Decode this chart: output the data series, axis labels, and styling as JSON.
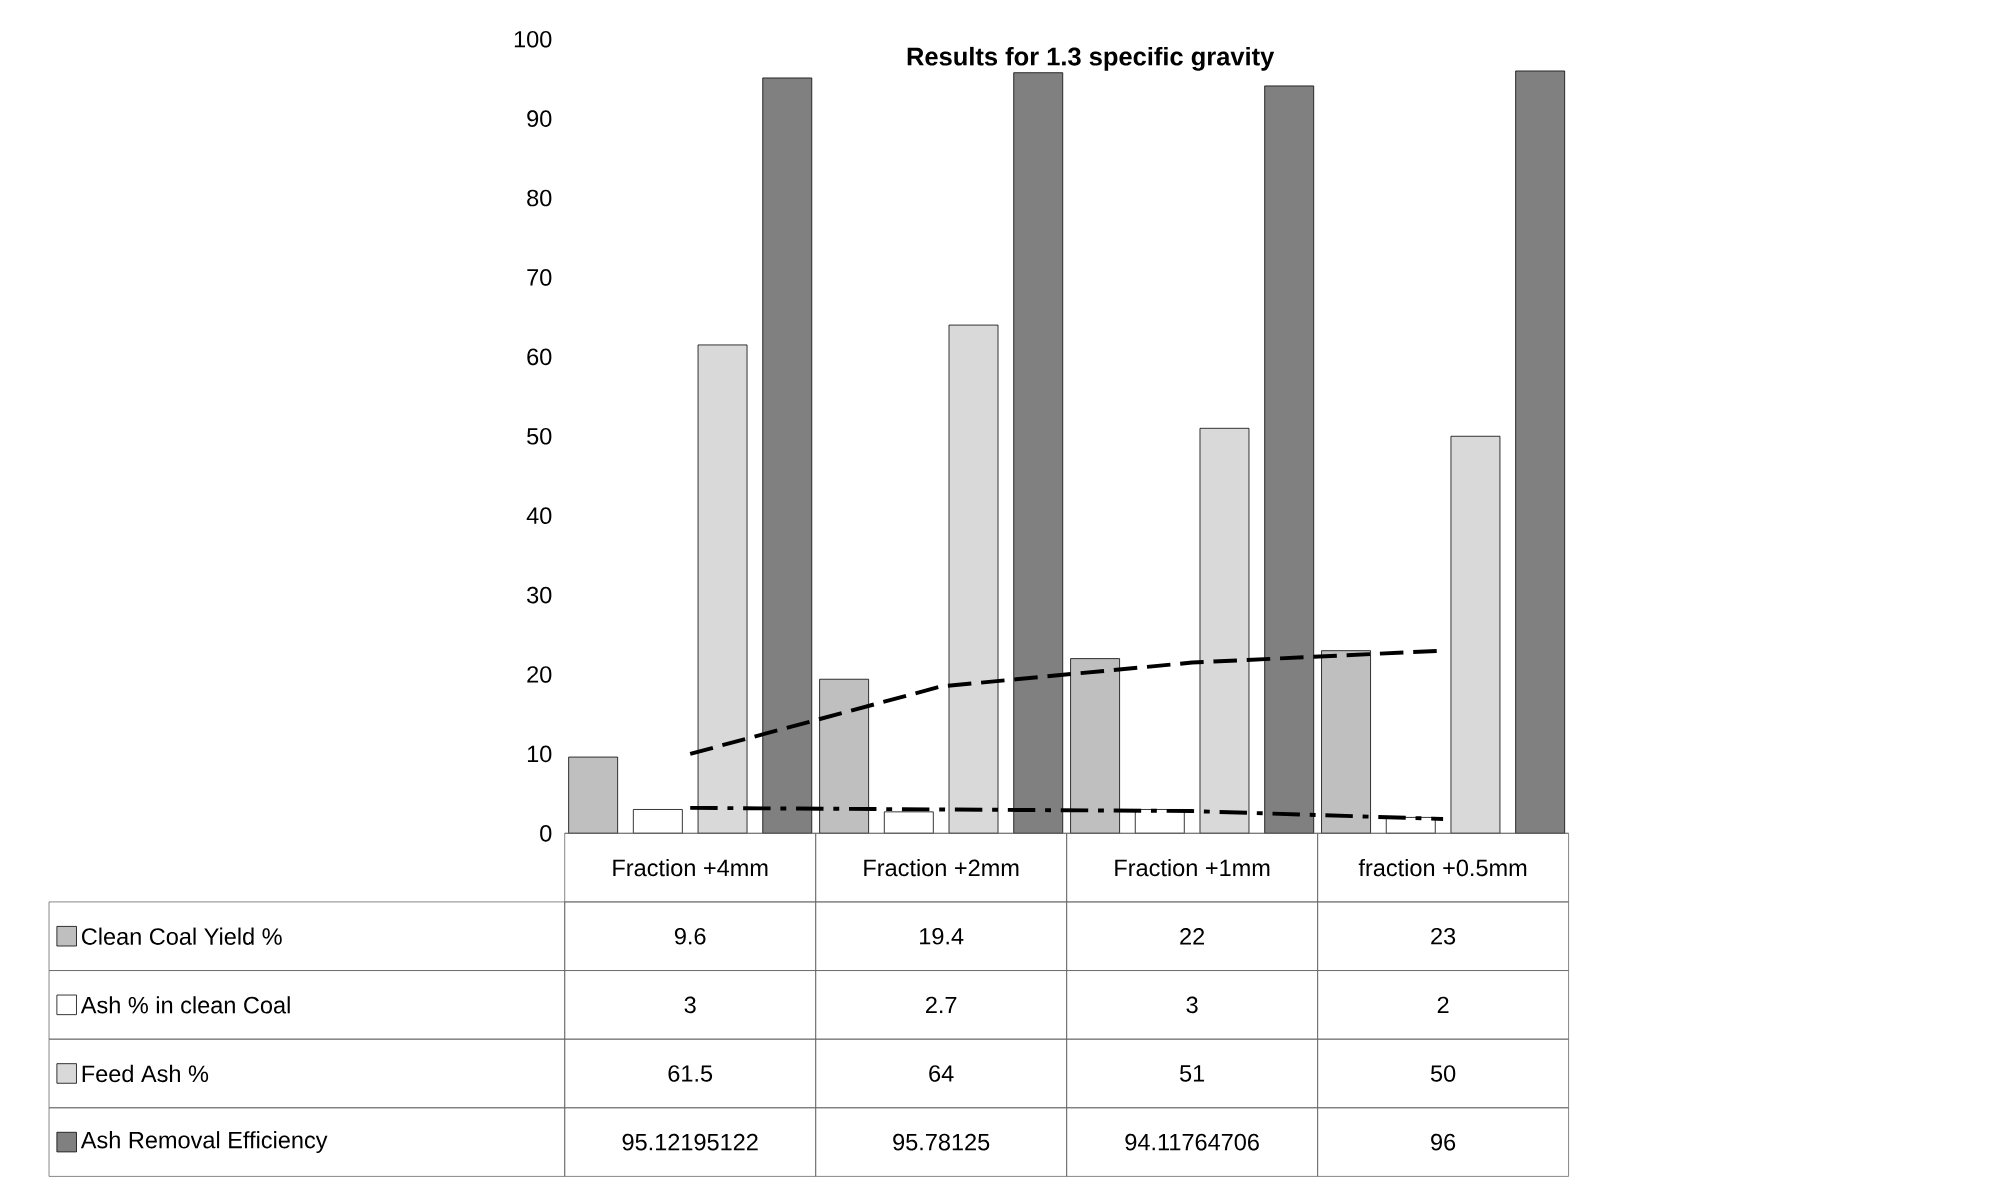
{
  "chart_data": {
    "type": "bar",
    "title": "Results for 1.3 specific gravity",
    "categories": [
      "Fraction +4mm",
      "Fraction +2mm",
      "Fraction +1mm",
      "fraction +0.5mm"
    ],
    "ylim": [
      0,
      100
    ],
    "yticks": [
      0,
      10,
      20,
      30,
      40,
      50,
      60,
      70,
      80,
      90,
      100
    ],
    "grid": false,
    "legend": "bottom",
    "series": [
      {
        "name": "Clean Coal Yield %",
        "color": "#bfbfbf",
        "values": [
          9.6,
          19.4,
          22,
          23
        ],
        "value_labels": [
          "9.6",
          "19.4",
          "22",
          "23"
        ]
      },
      {
        "name": "Ash % in clean Coal",
        "color": "#ffffff",
        "values": [
          3,
          2.7,
          3,
          2
        ],
        "value_labels": [
          "3",
          "2.7",
          "3",
          "2"
        ]
      },
      {
        "name": "Feed Ash %",
        "color": "#d9d9d9",
        "values": [
          61.5,
          64,
          51,
          50
        ],
        "value_labels": [
          "61.5",
          "64",
          "51",
          "50"
        ]
      },
      {
        "name": "Ash Removal Efficiency",
        "color": "#808080",
        "values": [
          95.12195122,
          95.78125,
          94.11764706,
          96
        ],
        "value_labels": [
          "95.12195122",
          "95.78125",
          "94.11764706",
          "96"
        ]
      },
      {
        "type": "line",
        "color": "#000000",
        "line_style": "dashed",
        "values": [
          10,
          18.5,
          21.5,
          23
        ]
      },
      {
        "type": "line",
        "color": "#000000",
        "line_style": "dashdot",
        "values": [
          3.2,
          3,
          2.8,
          1.8
        ]
      }
    ]
  }
}
